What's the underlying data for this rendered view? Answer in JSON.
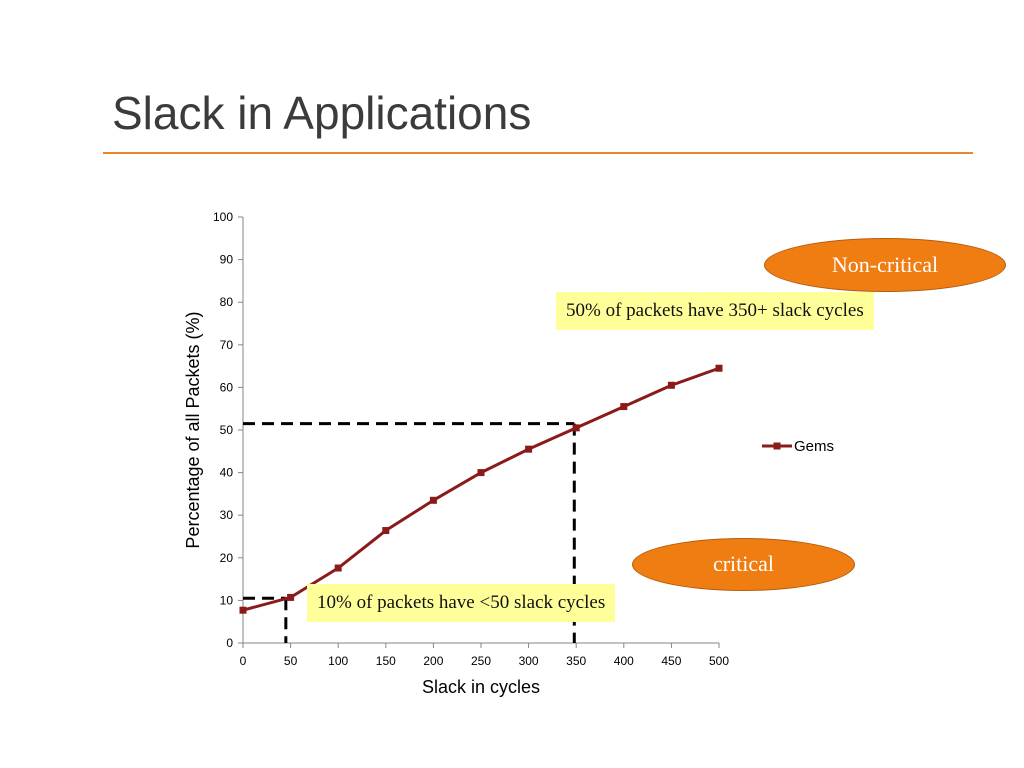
{
  "slide": {
    "title": "Slack in Applications",
    "accent_color": "#e9872a"
  },
  "annotations": {
    "non_critical_label": "Non-critical",
    "critical_label": "critical",
    "callout_350": "50% of packets have 350+ slack cycles",
    "callout_50": "10% of packets have <50 slack cycles",
    "ellipse_color": "#f07d12",
    "callout_color": "#ffff99"
  },
  "chart_data": {
    "type": "line",
    "title": "",
    "xlabel": "Slack in cycles",
    "ylabel": "Percentage of all Packets (%)",
    "xlim": [
      0,
      500
    ],
    "ylim": [
      0,
      100
    ],
    "xticks": [
      0,
      50,
      100,
      150,
      200,
      250,
      300,
      350,
      400,
      450,
      500
    ],
    "yticks": [
      0,
      10,
      20,
      30,
      40,
      50,
      60,
      70,
      80,
      90,
      100
    ],
    "grid": false,
    "legend_position": "right",
    "series": [
      {
        "name": "Gems",
        "color": "#8b1a1a",
        "marker": "square",
        "x": [
          0,
          50,
          100,
          150,
          200,
          250,
          300,
          350,
          400,
          450,
          500
        ],
        "y": [
          7.7,
          10.7,
          17.6,
          26.4,
          33.5,
          40.0,
          45.5,
          50.5,
          55.5,
          60.5,
          64.5
        ]
      }
    ],
    "reference_lines": [
      {
        "x": 45,
        "y": 10.5,
        "style": "dashed"
      },
      {
        "x": 348,
        "y": 51.5,
        "style": "dashed"
      }
    ]
  }
}
